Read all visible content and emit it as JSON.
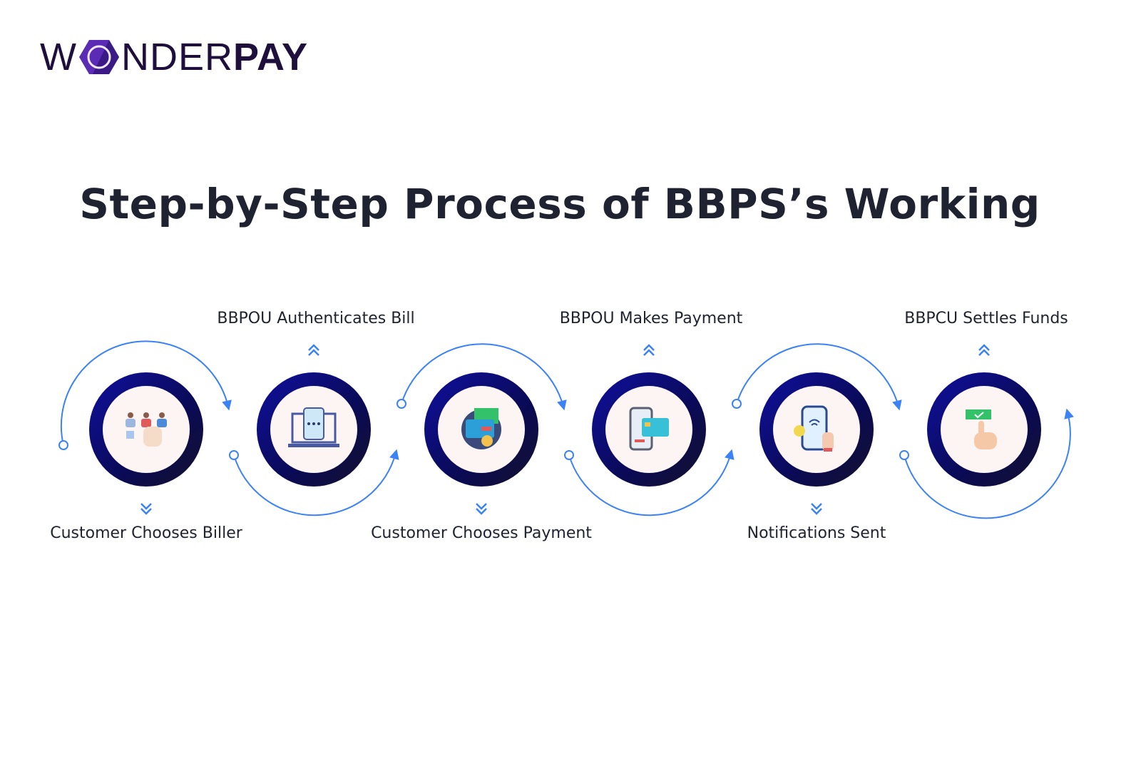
{
  "logo": {
    "text_light": "W",
    "text_light2": "NDER",
    "text_bold": "PAY",
    "brand_color": "#1e0f3c",
    "accent": "#5b2bb5"
  },
  "title": "Step-by-Step Process of BBPS’s Working",
  "colors": {
    "ring": "#0b0b7a",
    "arc": "#3b82f6",
    "inner": "#fdf5f4"
  },
  "steps": [
    {
      "label": "Customer Chooses Biller",
      "position": "bottom",
      "icon": "select-person-icon"
    },
    {
      "label": "BBPOU Authenticates Bill",
      "position": "top",
      "icon": "laptop-phone-icon"
    },
    {
      "label": "Customer Chooses Payment",
      "position": "bottom",
      "icon": "card-payment-icon"
    },
    {
      "label": "BBPOU Makes Payment",
      "position": "top",
      "icon": "phone-pay-icon"
    },
    {
      "label": "Notifications Sent",
      "position": "bottom",
      "icon": "phone-notification-icon"
    },
    {
      "label": "BBPCU Settles Funds",
      "position": "top",
      "icon": "hand-tap-money-icon"
    }
  ]
}
